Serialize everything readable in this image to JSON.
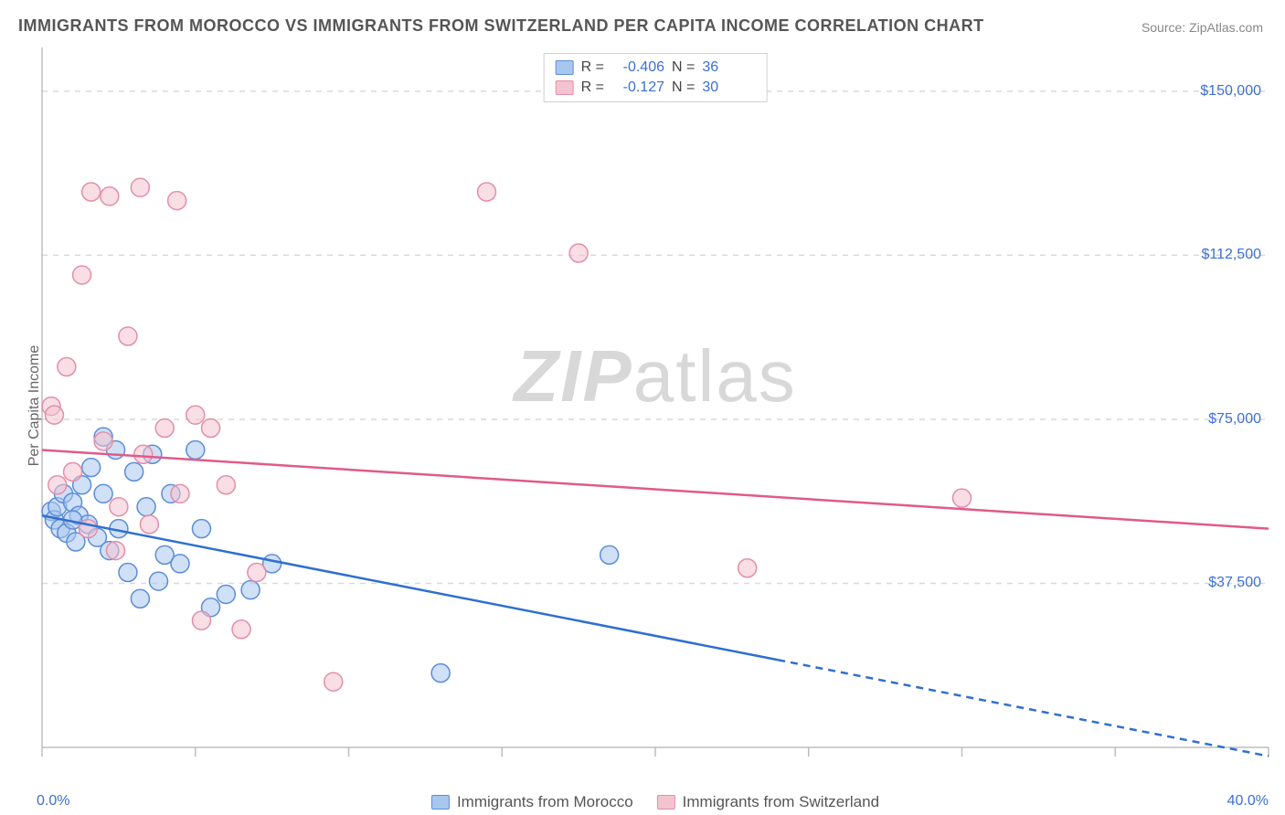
{
  "title": "IMMIGRANTS FROM MOROCCO VS IMMIGRANTS FROM SWITZERLAND PER CAPITA INCOME CORRELATION CHART",
  "source_label": "Source:",
  "source_name": "ZipAtlas.com",
  "ylabel": "Per Capita Income",
  "watermark": {
    "zip": "ZIP",
    "atlas": "atlas"
  },
  "chart": {
    "type": "scatter",
    "background_color": "#ffffff",
    "xlim": [
      0,
      40
    ],
    "ylim": [
      0,
      160000
    ],
    "x_ticks_major": [
      0,
      5,
      10,
      15,
      20,
      25,
      30,
      35,
      40
    ],
    "x_tick_labels": [
      {
        "value": 0,
        "label": "0.0%"
      },
      {
        "value": 40,
        "label": "40.0%"
      }
    ],
    "y_gridlines": [
      37500,
      75000,
      112500,
      150000
    ],
    "y_tick_labels": [
      {
        "value": 37500,
        "label": "$37,500"
      },
      {
        "value": 75000,
        "label": "$75,000"
      },
      {
        "value": 112500,
        "label": "$112,500"
      },
      {
        "value": 150000,
        "label": "$150,000"
      }
    ],
    "axis_color": "#bdbdbd",
    "grid_color": "#d9d9d9",
    "grid_dash": "6 6",
    "label_color": "#3b6fd6",
    "marker_radius": 10,
    "marker_stroke_width": 1.5,
    "marker_opacity": 0.55,
    "trend_line_width": 2.5,
    "series": [
      {
        "key": "morocco",
        "name": "Immigrants from Morocco",
        "fill": "#a9c6ee",
        "stroke": "#5b8dd8",
        "line_color": "#2f6fd0",
        "R": "-0.406",
        "N": "36",
        "trend": {
          "x1": 0,
          "y1": 53000,
          "x2": 24,
          "y2": 20000,
          "dash_after_x": 24,
          "x2_dash": 40,
          "y2_dash": -2000
        },
        "points": [
          [
            0.3,
            54000
          ],
          [
            0.4,
            52000
          ],
          [
            0.5,
            55000
          ],
          [
            0.6,
            50000
          ],
          [
            0.7,
            58000
          ],
          [
            0.8,
            49000
          ],
          [
            1.0,
            56000
          ],
          [
            1.1,
            47000
          ],
          [
            1.2,
            53000
          ],
          [
            1.3,
            60000
          ],
          [
            1.5,
            51000
          ],
          [
            1.6,
            64000
          ],
          [
            1.8,
            48000
          ],
          [
            2.0,
            71000
          ],
          [
            2.0,
            58000
          ],
          [
            2.2,
            45000
          ],
          [
            2.4,
            68000
          ],
          [
            2.5,
            50000
          ],
          [
            2.8,
            40000
          ],
          [
            3.0,
            63000
          ],
          [
            3.2,
            34000
          ],
          [
            3.4,
            55000
          ],
          [
            3.6,
            67000
          ],
          [
            3.8,
            38000
          ],
          [
            4.0,
            44000
          ],
          [
            4.2,
            58000
          ],
          [
            4.5,
            42000
          ],
          [
            5.0,
            68000
          ],
          [
            5.2,
            50000
          ],
          [
            5.5,
            32000
          ],
          [
            6.0,
            35000
          ],
          [
            6.8,
            36000
          ],
          [
            7.5,
            42000
          ],
          [
            13.0,
            17000
          ],
          [
            18.5,
            44000
          ],
          [
            1.0,
            52000
          ]
        ]
      },
      {
        "key": "switzerland",
        "name": "Immigrants from Switzerland",
        "fill": "#f4c3d0",
        "stroke": "#e28fa8",
        "line_color": "#e05a8a",
        "R": "-0.127",
        "N": "30",
        "trend": {
          "x1": 0,
          "y1": 68000,
          "x2": 40,
          "y2": 50000
        },
        "points": [
          [
            0.3,
            78000
          ],
          [
            0.4,
            76000
          ],
          [
            0.5,
            60000
          ],
          [
            0.8,
            87000
          ],
          [
            1.0,
            63000
          ],
          [
            1.3,
            108000
          ],
          [
            1.5,
            50000
          ],
          [
            1.6,
            127000
          ],
          [
            2.0,
            70000
          ],
          [
            2.2,
            126000
          ],
          [
            2.4,
            45000
          ],
          [
            2.5,
            55000
          ],
          [
            2.8,
            94000
          ],
          [
            3.2,
            128000
          ],
          [
            3.3,
            67000
          ],
          [
            3.5,
            51000
          ],
          [
            4.0,
            73000
          ],
          [
            4.4,
            125000
          ],
          [
            4.5,
            58000
          ],
          [
            5.0,
            76000
          ],
          [
            5.2,
            29000
          ],
          [
            5.5,
            73000
          ],
          [
            6.0,
            60000
          ],
          [
            6.5,
            27000
          ],
          [
            7.0,
            40000
          ],
          [
            9.5,
            15000
          ],
          [
            14.5,
            127000
          ],
          [
            17.5,
            113000
          ],
          [
            23.0,
            41000
          ],
          [
            30.0,
            57000
          ]
        ]
      }
    ]
  },
  "legend_top": {
    "r_prefix": "R =",
    "n_prefix": "N ="
  }
}
